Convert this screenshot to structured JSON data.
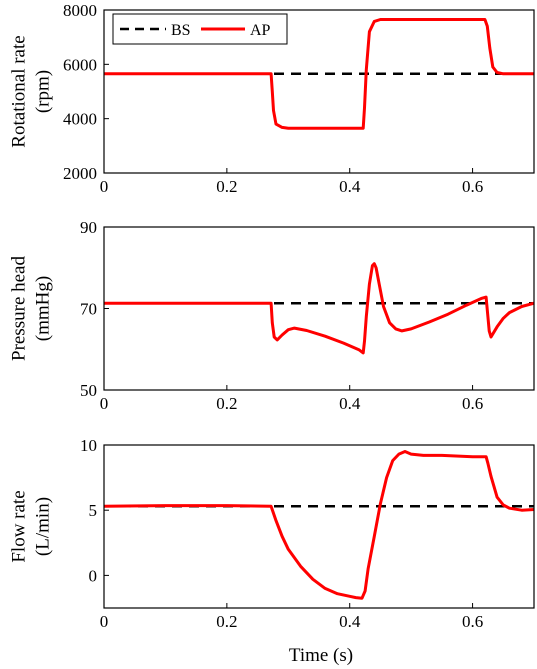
{
  "colors": {
    "baseline": "#000000",
    "ap": "#ff0000",
    "axes": "#000000"
  },
  "legend": [
    {
      "label": "BS",
      "style": "dashed",
      "color": "#000000"
    },
    {
      "label": "AP",
      "style": "solid",
      "color": "#ff0000"
    }
  ],
  "xlabel": "Time (s)",
  "chart_data": [
    {
      "type": "line",
      "ylabel_lines": [
        "Rotational rate",
        "(rpm)"
      ],
      "xlim": [
        0,
        0.7
      ],
      "ylim": [
        2000,
        8000
      ],
      "xticks": [
        0,
        0.2,
        0.4,
        0.6
      ],
      "xtick_labels": [
        "0",
        "0.2",
        "0.4",
        "0.6"
      ],
      "yticks": [
        2000,
        4000,
        6000,
        8000
      ],
      "ytick_labels": [
        "2000",
        "4000",
        "6000",
        "8000"
      ],
      "grid": false,
      "legend_position": "top-left",
      "series": [
        {
          "name": "BS",
          "style": "dashed",
          "color": "#000000",
          "x": [
            0,
            0.7
          ],
          "y": [
            5650,
            5650
          ]
        },
        {
          "name": "AP",
          "style": "solid",
          "color": "#ff0000",
          "x": [
            0,
            0.272,
            0.274,
            0.276,
            0.28,
            0.29,
            0.3,
            0.35,
            0.4,
            0.422,
            0.424,
            0.427,
            0.432,
            0.44,
            0.45,
            0.5,
            0.55,
            0.6,
            0.62,
            0.624,
            0.628,
            0.633,
            0.64,
            0.65,
            0.7
          ],
          "y": [
            5650,
            5650,
            5000,
            4300,
            3800,
            3680,
            3650,
            3650,
            3650,
            3650,
            4400,
            5800,
            7200,
            7580,
            7650,
            7650,
            7650,
            7650,
            7650,
            7400,
            6600,
            5900,
            5700,
            5650,
            5650
          ]
        }
      ]
    },
    {
      "type": "line",
      "ylabel_lines": [
        "Pressure head",
        "(mmHg)"
      ],
      "xlim": [
        0,
        0.7
      ],
      "ylim": [
        50,
        90
      ],
      "xticks": [
        0,
        0.2,
        0.4,
        0.6
      ],
      "xtick_labels": [
        "0",
        "0.2",
        "0.4",
        "0.6"
      ],
      "yticks": [
        50,
        70,
        90
      ],
      "ytick_labels": [
        "50",
        "70",
        "90"
      ],
      "grid": false,
      "series": [
        {
          "name": "BS",
          "style": "dashed",
          "color": "#000000",
          "x": [
            0,
            0.7
          ],
          "y": [
            71.3,
            71.3
          ]
        },
        {
          "name": "AP",
          "style": "solid",
          "color": "#ff0000",
          "x": [
            0,
            0.272,
            0.274,
            0.277,
            0.282,
            0.29,
            0.3,
            0.31,
            0.33,
            0.36,
            0.39,
            0.415,
            0.422,
            0.424,
            0.427,
            0.432,
            0.437,
            0.44,
            0.443,
            0.448,
            0.455,
            0.465,
            0.475,
            0.485,
            0.5,
            0.53,
            0.56,
            0.59,
            0.615,
            0.622,
            0.625,
            0.627,
            0.63,
            0.64,
            0.65,
            0.66,
            0.68,
            0.7
          ],
          "y": [
            71.3,
            71.3,
            66.5,
            63.0,
            62.3,
            63.5,
            64.8,
            65.2,
            64.6,
            63.2,
            61.5,
            59.9,
            59.1,
            62.0,
            68.0,
            76.0,
            80.5,
            81.0,
            80.0,
            76.0,
            70.5,
            66.5,
            65.0,
            64.5,
            65.0,
            66.7,
            68.6,
            70.8,
            72.5,
            72.8,
            68.0,
            64.5,
            63.0,
            65.5,
            67.6,
            69.0,
            70.5,
            71.3
          ]
        }
      ]
    },
    {
      "type": "line",
      "ylabel_lines": [
        "Flow rate",
        "(L/min)"
      ],
      "xlim": [
        0,
        0.7
      ],
      "ylim": [
        -2.5,
        10
      ],
      "xticks": [
        0,
        0.2,
        0.4,
        0.6
      ],
      "xtick_labels": [
        "0",
        "0.2",
        "0.4",
        "0.6"
      ],
      "yticks": [
        0,
        5,
        10
      ],
      "ytick_labels": [
        "0",
        "5",
        "10"
      ],
      "grid": false,
      "series": [
        {
          "name": "BS",
          "style": "dashed",
          "color": "#000000",
          "x": [
            0,
            0.7
          ],
          "y": [
            5.3,
            5.3
          ]
        },
        {
          "name": "AP",
          "style": "solid",
          "color": "#ff0000",
          "x": [
            0,
            0.1,
            0.2,
            0.272,
            0.28,
            0.29,
            0.3,
            0.32,
            0.34,
            0.36,
            0.38,
            0.4,
            0.41,
            0.42,
            0.425,
            0.43,
            0.44,
            0.45,
            0.46,
            0.47,
            0.48,
            0.49,
            0.5,
            0.52,
            0.55,
            0.6,
            0.622,
            0.625,
            0.63,
            0.64,
            0.65,
            0.66,
            0.68,
            0.7
          ],
          "y": [
            5.3,
            5.35,
            5.35,
            5.3,
            4.2,
            3.0,
            2.0,
            0.7,
            -0.3,
            -1.0,
            -1.4,
            -1.6,
            -1.7,
            -1.75,
            -1.2,
            0.5,
            3.0,
            5.5,
            7.5,
            8.8,
            9.3,
            9.5,
            9.3,
            9.2,
            9.2,
            9.1,
            9.1,
            8.6,
            7.6,
            6.0,
            5.4,
            5.15,
            5.0,
            5.05
          ]
        }
      ]
    }
  ]
}
